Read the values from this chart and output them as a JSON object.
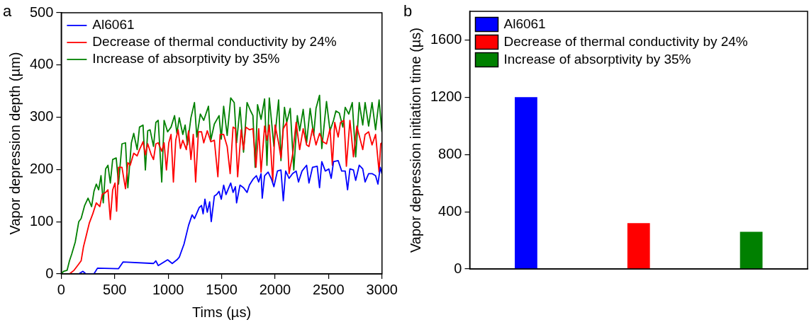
{
  "chart_data": [
    {
      "type": "line",
      "title": "a",
      "xlabel": "Tims (µs)",
      "ylabel": "Vapor depression depth (µm)",
      "xlim": [
        0,
        3000
      ],
      "xticks": [
        0,
        500,
        1000,
        1500,
        2000,
        2500,
        3000
      ],
      "ylim": [
        0,
        500
      ],
      "yticks": [
        0,
        100,
        200,
        300,
        400,
        500
      ],
      "grid": false,
      "legend": "top left",
      "marker": "none",
      "line_style": "solid",
      "series": [
        {
          "name": "Al6061",
          "color": "#0000ff",
          "x": [
            164,
            203,
            230,
            306,
            339,
            536,
            579,
            863,
            885,
            907,
            995,
            1038,
            1082,
            1104,
            1148,
            1191,
            1224,
            1246,
            1290,
            1312,
            1327,
            1344,
            1366,
            1388,
            1403,
            1432,
            1454,
            1476,
            1497,
            1519,
            1541,
            1563,
            1585,
            1607,
            1629,
            1640,
            1672,
            1705,
            1738,
            1760,
            1793,
            1825,
            1847,
            1869,
            1880,
            1902,
            1935,
            1967,
            1989,
            2022,
            2055,
            2077,
            2099,
            2131,
            2164,
            2197,
            2219,
            2252,
            2295,
            2317,
            2350,
            2394,
            2416,
            2437,
            2470,
            2503,
            2525,
            2547,
            2590,
            2623,
            2656,
            2678,
            2700,
            2733,
            2754,
            2787,
            2820,
            2842,
            2875,
            2907,
            2940,
            2962,
            2984,
            2999
          ],
          "values": [
            0,
            5,
            0,
            0,
            11,
            10,
            23,
            20,
            25,
            16,
            27,
            20,
            27,
            32,
            57,
            93,
            113,
            106,
            127,
            131,
            115,
            143,
            118,
            138,
            100,
            149,
            152,
            158,
            143,
            170,
            152,
            163,
            174,
            156,
            167,
            136,
            170,
            165,
            156,
            170,
            181,
            188,
            176,
            192,
            145,
            188,
            195,
            181,
            167,
            197,
            199,
            140,
            197,
            183,
            192,
            197,
            176,
            197,
            208,
            174,
            204,
            206,
            165,
            215,
            197,
            201,
            183,
            215,
            217,
            197,
            197,
            161,
            201,
            199,
            179,
            208,
            201,
            176,
            192,
            192,
            188,
            172,
            204,
            192
          ]
        },
        {
          "name": "Decrease of thermal conductivity by 24%",
          "color": "#ff0000",
          "x": [
            77,
            120,
            153,
            186,
            208,
            230,
            262,
            295,
            328,
            361,
            383,
            415,
            437,
            459,
            481,
            503,
            518,
            536,
            568,
            601,
            623,
            645,
            678,
            710,
            732,
            765,
            787,
            809,
            842,
            863,
            885,
            907,
            940,
            962,
            984,
            1006,
            1027,
            1049,
            1071,
            1093,
            1115,
            1137,
            1170,
            1191,
            1213,
            1235,
            1257,
            1283,
            1312,
            1333,
            1366,
            1399,
            1432,
            1465,
            1486,
            1519,
            1552,
            1580,
            1607,
            1629,
            1650,
            1683,
            1705,
            1727,
            1760,
            1793,
            1821,
            1847,
            1869,
            1902,
            1924,
            1946,
            1978,
            2000,
            2033,
            2055,
            2077,
            2109,
            2131,
            2164,
            2197,
            2230,
            2263,
            2295,
            2317,
            2350,
            2383,
            2416,
            2448,
            2481,
            2514,
            2536,
            2558,
            2590,
            2612,
            2645,
            2667,
            2700,
            2733,
            2765,
            2787,
            2820,
            2842,
            2875,
            2907,
            2940,
            2973,
            2988,
            2999
          ],
          "values": [
            0,
            7,
            16,
            25,
            52,
            70,
            97,
            115,
            136,
            129,
            152,
            156,
            161,
            104,
            161,
            174,
            120,
            204,
            204,
            163,
            213,
            208,
            231,
            226,
            238,
            253,
            228,
            249,
            228,
            219,
            249,
            251,
            235,
            251,
            199,
            251,
            267,
            176,
            256,
            276,
            240,
            256,
            238,
            274,
            219,
            267,
            176,
            272,
            272,
            251,
            274,
            253,
            256,
            186,
            267,
            267,
            244,
            192,
            281,
            278,
            186,
            276,
            238,
            281,
            276,
            278,
            204,
            278,
            195,
            283,
            256,
            285,
            176,
            285,
            251,
            222,
            278,
            290,
            192,
            228,
            290,
            238,
            278,
            247,
            244,
            278,
            247,
            269,
            253,
            249,
            278,
            208,
            290,
            262,
            290,
            294,
            206,
            294,
            224,
            283,
            265,
            238,
            267,
            272,
            247,
            267,
            195,
            249,
            251
          ]
        },
        {
          "name": "Increase of absorptivity by 35%",
          "color": "#008000",
          "x": [
            0,
            22,
            55,
            77,
            98,
            131,
            164,
            186,
            219,
            251,
            284,
            306,
            328,
            350,
            372,
            393,
            415,
            437,
            459,
            481,
            514,
            536,
            568,
            601,
            623,
            656,
            678,
            710,
            732,
            765,
            787,
            809,
            831,
            863,
            885,
            907,
            940,
            962,
            995,
            1027,
            1060,
            1082,
            1104,
            1137,
            1159,
            1180,
            1213,
            1246,
            1268,
            1301,
            1333,
            1377,
            1399,
            1432,
            1476,
            1497,
            1519,
            1552,
            1585,
            1618,
            1640,
            1672,
            1705,
            1738,
            1771,
            1793,
            1814,
            1836,
            1869,
            1902,
            1924,
            1946,
            1989,
            2033,
            2055,
            2088,
            2109,
            2142,
            2175,
            2208,
            2230,
            2263,
            2295,
            2328,
            2361,
            2383,
            2416,
            2437,
            2481,
            2514,
            2547,
            2569,
            2601,
            2634,
            2656,
            2689,
            2722,
            2754,
            2787,
            2820,
            2842,
            2875,
            2907,
            2940,
            2973,
            2999
          ],
          "values": [
            0,
            5,
            7,
            25,
            38,
            61,
            100,
            106,
            131,
            145,
            129,
            158,
            172,
            161,
            188,
            136,
            201,
            208,
            174,
            219,
            222,
            172,
            249,
            251,
            165,
            251,
            269,
            238,
            281,
            285,
            199,
            274,
            276,
            244,
            290,
            294,
            176,
            294,
            272,
            281,
            303,
            269,
            299,
            267,
            285,
            247,
            299,
            328,
            262,
            306,
            294,
            321,
            256,
            287,
            303,
            258,
            321,
            265,
            337,
            328,
            251,
            319,
            233,
            328,
            312,
            303,
            204,
            324,
            296,
            335,
            208,
            337,
            244,
            333,
            217,
            319,
            290,
            317,
            199,
            303,
            274,
            315,
            251,
            317,
            265,
            317,
            342,
            240,
            330,
            274,
            294,
            312,
            308,
            281,
            319,
            306,
            328,
            224,
            328,
            285,
            328,
            283,
            328,
            276,
            333,
            272
          ]
        }
      ]
    },
    {
      "type": "bar",
      "title": "b",
      "ylabel": "Vapor depression initiation time (µs)",
      "categories": [
        null,
        null,
        null
      ],
      "ylim": [
        0,
        1800
      ],
      "yticks": [
        0,
        400,
        800,
        1200,
        1600
      ],
      "grid": false,
      "legend": "top left",
      "series": [
        {
          "name": "Al6061",
          "color": "#0000ff",
          "values": [
            1200,
            null,
            null
          ]
        },
        {
          "name": "Decrease of thermal conductivity by 24%",
          "color": "#ff0000",
          "values": [
            null,
            320,
            null
          ]
        },
        {
          "name": "Increase of absorptivity by 35%",
          "color": "#008000",
          "values": [
            null,
            null,
            260
          ]
        }
      ]
    }
  ]
}
